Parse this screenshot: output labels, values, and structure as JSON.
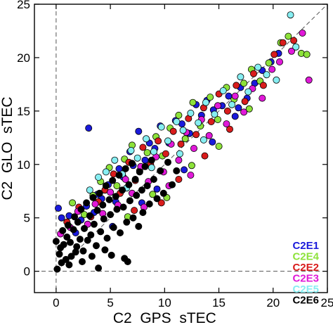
{
  "chart_data": {
    "type": "scatter",
    "title": "",
    "xlabel": "C2  GPS  sTEC",
    "ylabel": "C2  GLO  sTEC",
    "xlim": [
      -2,
      25
    ],
    "ylim": [
      -2,
      25
    ],
    "x_ticks": [
      0,
      5,
      10,
      15,
      20,
      25
    ],
    "y_ticks": [
      0,
      5,
      10,
      15,
      20,
      25
    ],
    "x_tick_labels": [
      "0",
      "5",
      "10",
      "15",
      "20",
      "25"
    ],
    "y_tick_labels": [
      "0",
      "5",
      "10",
      "15",
      "20",
      "25"
    ],
    "reference_lines": [
      "x = 0 (dashed)",
      "y = 0 (dashed)",
      "y = x (dashed)"
    ],
    "grid": false,
    "legend_position": "bottom-right",
    "series": [
      {
        "name": "C2E1",
        "color": "#1a1adb",
        "points": [
          [
            0.2,
            5.9
          ],
          [
            0.5,
            5.0
          ],
          [
            1.2,
            5.2
          ],
          [
            1.8,
            3.6
          ],
          [
            2.3,
            4.8
          ],
          [
            2.8,
            6.1
          ],
          [
            3.0,
            13.4
          ],
          [
            3.5,
            5.5
          ],
          [
            3.8,
            7.2
          ],
          [
            4.2,
            6.8
          ],
          [
            4.8,
            8.1
          ],
          [
            5.5,
            6.5
          ],
          [
            5.8,
            9.6
          ],
          [
            6.2,
            8.8
          ],
          [
            6.8,
            11.2
          ],
          [
            7.1,
            9.9
          ],
          [
            7.6,
            13.1
          ],
          [
            8.2,
            10.4
          ],
          [
            8.6,
            12.0
          ],
          [
            9.1,
            11.5
          ],
          [
            9.6,
            13.6
          ],
          [
            10.4,
            12.0
          ],
          [
            11.0,
            14.1
          ],
          [
            11.6,
            13.8
          ],
          [
            12.3,
            12.9
          ],
          [
            12.9,
            15.6
          ],
          [
            13.4,
            14.6
          ],
          [
            13.9,
            16.0
          ],
          [
            14.5,
            15.1
          ],
          [
            15.3,
            15.5
          ],
          [
            15.9,
            16.4
          ],
          [
            16.5,
            14.5
          ],
          [
            17.0,
            17.2
          ],
          [
            17.6,
            16.2
          ],
          [
            18.3,
            17.6
          ],
          [
            19.0,
            18.8
          ],
          [
            19.8,
            19.6
          ],
          [
            20.5,
            20.4
          ],
          [
            5.2,
            4.2
          ],
          [
            9.3,
            7.7
          ],
          [
            11.8,
            9.5
          ],
          [
            14.4,
            12.1
          ],
          [
            16.8,
            15.3
          ],
          [
            7.9,
            6.4
          ]
        ]
      },
      {
        "name": "C2E4",
        "color": "#8de23a",
        "points": [
          [
            1.5,
            6.4
          ],
          [
            2.6,
            5.3
          ],
          [
            3.4,
            7.1
          ],
          [
            4.1,
            8.4
          ],
          [
            4.9,
            9.7
          ],
          [
            5.6,
            8.0
          ],
          [
            6.3,
            10.5
          ],
          [
            7.0,
            11.8
          ],
          [
            7.7,
            9.4
          ],
          [
            8.4,
            11.1
          ],
          [
            9.2,
            12.6
          ],
          [
            9.8,
            10.8
          ],
          [
            10.5,
            13.4
          ],
          [
            11.3,
            14.6
          ],
          [
            11.9,
            12.4
          ],
          [
            12.6,
            15.8
          ],
          [
            13.3,
            13.6
          ],
          [
            14.2,
            16.3
          ],
          [
            14.9,
            14.2
          ],
          [
            15.7,
            17.2
          ],
          [
            16.4,
            16.1
          ],
          [
            17.3,
            17.6
          ],
          [
            18.0,
            18.9
          ],
          [
            18.8,
            17.8
          ],
          [
            19.6,
            19.5
          ],
          [
            20.7,
            21.4
          ],
          [
            21.4,
            22.0
          ],
          [
            22.6,
            20.4
          ],
          [
            23.1,
            20.3
          ],
          [
            10.2,
            6.9
          ],
          [
            12.5,
            9.9
          ],
          [
            8.9,
            7.2
          ],
          [
            6.6,
            5.1
          ],
          [
            17.8,
            15.2
          ],
          [
            15.0,
            11.7
          ]
        ]
      },
      {
        "name": "C2E2",
        "color": "#d91c1c",
        "points": [
          [
            1.0,
            4.6
          ],
          [
            2.1,
            6.0
          ],
          [
            3.2,
            5.1
          ],
          [
            3.9,
            6.5
          ],
          [
            4.5,
            7.6
          ],
          [
            5.3,
            9.1
          ],
          [
            5.9,
            7.3
          ],
          [
            6.7,
            10.2
          ],
          [
            7.3,
            8.5
          ],
          [
            8.0,
            11.6
          ],
          [
            8.7,
            10.0
          ],
          [
            9.4,
            12.2
          ],
          [
            10.1,
            11.0
          ],
          [
            10.8,
            13.1
          ],
          [
            11.5,
            11.9
          ],
          [
            12.2,
            14.3
          ],
          [
            12.9,
            12.8
          ],
          [
            13.6,
            15.3
          ],
          [
            14.3,
            14.0
          ],
          [
            15.0,
            16.6
          ],
          [
            15.8,
            15.0
          ],
          [
            16.6,
            17.4
          ],
          [
            17.4,
            15.9
          ],
          [
            18.2,
            18.5
          ],
          [
            19.1,
            17.4
          ],
          [
            20.1,
            20.3
          ],
          [
            20.9,
            21.4
          ],
          [
            11.3,
            8.6
          ],
          [
            13.7,
            10.8
          ],
          [
            16.0,
            13.3
          ],
          [
            9.7,
            6.4
          ],
          [
            7.2,
            5.7
          ],
          [
            21.9,
            21.6
          ]
        ]
      },
      {
        "name": "C2E3",
        "color": "#e019d8",
        "points": [
          [
            0.4,
            3.5
          ],
          [
            1.3,
            4.1
          ],
          [
            2.0,
            5.6
          ],
          [
            2.9,
            4.4
          ],
          [
            3.6,
            6.3
          ],
          [
            4.3,
            5.4
          ],
          [
            5.0,
            7.4
          ],
          [
            5.7,
            6.2
          ],
          [
            6.4,
            8.6
          ],
          [
            7.0,
            7.3
          ],
          [
            7.8,
            9.8
          ],
          [
            8.5,
            8.4
          ],
          [
            9.2,
            10.7
          ],
          [
            9.9,
            9.3
          ],
          [
            10.6,
            11.9
          ],
          [
            11.3,
            10.4
          ],
          [
            12.0,
            13.0
          ],
          [
            12.7,
            11.5
          ],
          [
            13.4,
            14.2
          ],
          [
            14.1,
            12.7
          ],
          [
            14.9,
            15.5
          ],
          [
            15.7,
            13.8
          ],
          [
            16.5,
            16.4
          ],
          [
            17.3,
            14.9
          ],
          [
            18.1,
            17.1
          ],
          [
            19.0,
            16.2
          ],
          [
            19.9,
            18.9
          ],
          [
            20.6,
            19.6
          ],
          [
            21.7,
            20.6
          ],
          [
            22.7,
            22.3
          ],
          [
            23.3,
            17.9
          ],
          [
            10.4,
            8.0
          ],
          [
            12.4,
            9.0
          ],
          [
            8.1,
            6.0
          ]
        ]
      },
      {
        "name": "C2E5",
        "color": "#86eef2",
        "points": [
          [
            3.1,
            7.6
          ],
          [
            3.9,
            8.8
          ],
          [
            4.6,
            9.3
          ],
          [
            5.4,
            10.4
          ],
          [
            6.1,
            9.1
          ],
          [
            6.9,
            11.3
          ],
          [
            7.5,
            10.6
          ],
          [
            8.3,
            12.4
          ],
          [
            9.0,
            11.2
          ],
          [
            9.7,
            13.5
          ],
          [
            10.3,
            12.2
          ],
          [
            11.1,
            14.0
          ],
          [
            11.7,
            13.2
          ],
          [
            12.4,
            14.8
          ],
          [
            13.1,
            13.9
          ],
          [
            13.8,
            15.8
          ],
          [
            14.6,
            14.7
          ],
          [
            15.4,
            16.9
          ],
          [
            16.2,
            15.6
          ],
          [
            17.0,
            18.2
          ],
          [
            17.7,
            16.8
          ],
          [
            18.6,
            19.1
          ],
          [
            19.4,
            18.4
          ],
          [
            20.3,
            17.9
          ],
          [
            21.6,
            24.0
          ],
          [
            22.1,
            21.0
          ],
          [
            6.5,
            7.8
          ],
          [
            8.8,
            9.7
          ],
          [
            11.4,
            11.0
          ],
          [
            13.6,
            12.3
          ]
        ]
      },
      {
        "name": "C2E6",
        "color": "#000000",
        "points": [
          [
            0.0,
            2.8
          ],
          [
            0.1,
            0.2
          ],
          [
            0.3,
            1.6
          ],
          [
            0.4,
            2.2
          ],
          [
            0.6,
            3.8
          ],
          [
            0.7,
            2.5
          ],
          [
            0.9,
            1.1
          ],
          [
            1.0,
            3.2
          ],
          [
            1.1,
            4.3
          ],
          [
            1.3,
            2.7
          ],
          [
            1.4,
            1.4
          ],
          [
            1.6,
            3.9
          ],
          [
            1.7,
            5.1
          ],
          [
            1.9,
            2.3
          ],
          [
            2.0,
            4.6
          ],
          [
            2.2,
            3.0
          ],
          [
            2.3,
            5.8
          ],
          [
            2.5,
            1.9
          ],
          [
            2.6,
            4.0
          ],
          [
            2.8,
            6.4
          ],
          [
            2.9,
            2.9
          ],
          [
            3.1,
            5.2
          ],
          [
            3.2,
            3.4
          ],
          [
            3.4,
            6.9
          ],
          [
            3.5,
            4.4
          ],
          [
            3.7,
            2.4
          ],
          [
            3.8,
            5.7
          ],
          [
            4.0,
            7.3
          ],
          [
            4.1,
            3.7
          ],
          [
            4.3,
            6.2
          ],
          [
            4.4,
            4.9
          ],
          [
            4.6,
            8.0
          ],
          [
            4.7,
            3.1
          ],
          [
            4.9,
            6.7
          ],
          [
            5.0,
            5.3
          ],
          [
            5.2,
            8.5
          ],
          [
            5.3,
            4.1
          ],
          [
            5.5,
            7.0
          ],
          [
            5.6,
            5.8
          ],
          [
            5.8,
            9.0
          ],
          [
            5.9,
            3.6
          ],
          [
            6.1,
            7.6
          ],
          [
            6.2,
            6.0
          ],
          [
            6.4,
            9.6
          ],
          [
            6.5,
            4.6
          ],
          [
            6.7,
            8.1
          ],
          [
            6.8,
            6.6
          ],
          [
            7.0,
            10.1
          ],
          [
            7.1,
            5.0
          ],
          [
            7.3,
            8.6
          ],
          [
            7.4,
            7.1
          ],
          [
            7.6,
            4.2
          ],
          [
            7.7,
            9.3
          ],
          [
            7.9,
            7.6
          ],
          [
            8.0,
            5.5
          ],
          [
            8.2,
            9.8
          ],
          [
            8.4,
            8.0
          ],
          [
            8.6,
            6.3
          ],
          [
            8.8,
            10.4
          ],
          [
            9.0,
            8.6
          ],
          [
            9.3,
            6.8
          ],
          [
            9.6,
            9.4
          ],
          [
            9.9,
            7.3
          ],
          [
            10.3,
            10.2
          ],
          [
            10.7,
            8.1
          ],
          [
            11.1,
            9.4
          ],
          [
            1.2,
            0.6
          ],
          [
            2.4,
            0.9
          ],
          [
            3.9,
            0.3
          ],
          [
            5.1,
            1.5
          ],
          [
            6.3,
            1.2
          ],
          [
            6.6,
            0.9
          ],
          [
            4.5,
            2.0
          ],
          [
            0.5,
            0.8
          ],
          [
            1.8,
            1.8
          ],
          [
            3.3,
            1.4
          ]
        ]
      }
    ]
  }
}
